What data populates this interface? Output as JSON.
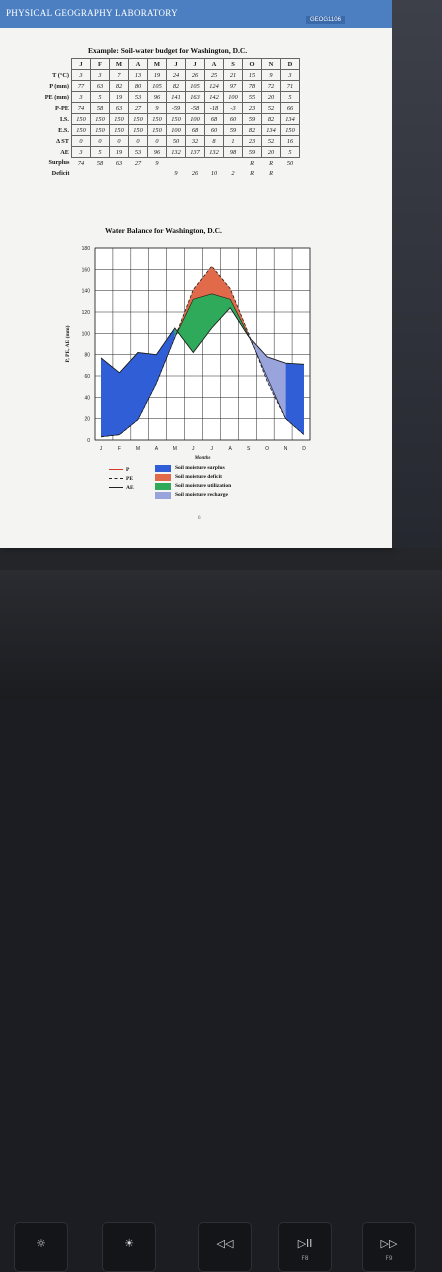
{
  "header": {
    "title": "PHYSICAL GEOGRAPHY LABORATORY",
    "code": "GEOG1106"
  },
  "table": {
    "title": "Example: Soil-water budget for Washington, D.C.",
    "months": [
      "J",
      "F",
      "M",
      "A",
      "M",
      "J",
      "J",
      "A",
      "S",
      "O",
      "N",
      "D"
    ],
    "rows": [
      {
        "label": "T (°C)",
        "values": [
          "3",
          "3",
          "7",
          "13",
          "19",
          "24",
          "26",
          "25",
          "21",
          "15",
          "9",
          "3"
        ]
      },
      {
        "label": "P (mm)",
        "values": [
          "77",
          "63",
          "82",
          "80",
          "105",
          "82",
          "105",
          "124",
          "97",
          "78",
          "72",
          "71"
        ]
      },
      {
        "label": "PE (mm)",
        "values": [
          "3",
          "5",
          "19",
          "53",
          "96",
          "141",
          "163",
          "142",
          "100",
          "55",
          "20",
          "5"
        ]
      },
      {
        "label": "P-PE",
        "values": [
          "74",
          "58",
          "63",
          "27",
          "9",
          "-59",
          "-58",
          "-18",
          "-3",
          "23",
          "52",
          "66"
        ]
      },
      {
        "label": "I.S.",
        "values": [
          "150",
          "150",
          "150",
          "150",
          "150",
          "150",
          "100",
          "68",
          "60",
          "59",
          "82",
          "134"
        ]
      },
      {
        "label": "E.S.",
        "values": [
          "150",
          "150",
          "150",
          "150",
          "150",
          "100",
          "68",
          "60",
          "59",
          "82",
          "134",
          "150"
        ]
      },
      {
        "label": "Δ ST",
        "values": [
          "0",
          "0",
          "0",
          "0",
          "0",
          "50",
          "32",
          "8",
          "1",
          "23",
          "52",
          "16"
        ]
      },
      {
        "label": "AE",
        "values": [
          "3",
          "5",
          "19",
          "53",
          "96",
          "132",
          "137",
          "132",
          "98",
          "59",
          "20",
          "5"
        ]
      },
      {
        "label": "Surplus",
        "values": [
          "74",
          "58",
          "63",
          "27",
          "9",
          "",
          "",
          "",
          "",
          "R",
          "R",
          "50"
        ]
      },
      {
        "label": "Deficit",
        "values": [
          "",
          "",
          "",
          "",
          "",
          "9",
          "26",
          "10",
          "2",
          "R",
          "R",
          ""
        ]
      }
    ]
  },
  "chart_data": {
    "type": "line",
    "title": "Water Balance for Washington, D.C.",
    "xlabel": "Months",
    "ylabel": "P, PE, AE (mm)",
    "categories": [
      "J",
      "F",
      "M",
      "A",
      "M",
      "J",
      "J",
      "A",
      "S",
      "O",
      "N",
      "D"
    ],
    "ylim": [
      0,
      180
    ],
    "yticks": [
      0,
      20,
      40,
      60,
      80,
      100,
      120,
      140,
      160,
      180
    ],
    "grid": true,
    "series": [
      {
        "name": "P",
        "values": [
          77,
          63,
          82,
          80,
          105,
          82,
          105,
          124,
          97,
          78,
          72,
          71
        ]
      },
      {
        "name": "PE",
        "values": [
          3,
          5,
          19,
          53,
          96,
          141,
          163,
          142,
          100,
          55,
          20,
          5
        ]
      },
      {
        "name": "AE",
        "values": [
          3,
          5,
          19,
          53,
          96,
          132,
          137,
          132,
          98,
          59,
          20,
          5
        ]
      }
    ],
    "legend": {
      "lines": [
        {
          "label": "P",
          "style": "solid",
          "color": "#d23b2a"
        },
        {
          "label": "PE",
          "style": "dashed",
          "color": "#222222"
        },
        {
          "label": "AE",
          "style": "solid",
          "color": "#222222"
        }
      ],
      "fills": [
        {
          "label": "Soil moisture surplus",
          "color": "#2f5ed6"
        },
        {
          "label": "Soil moisture deficit",
          "color": "#e06a4a"
        },
        {
          "label": "Soil moisture utilization",
          "color": "#2faa5a"
        },
        {
          "label": "Soil moisture recharge",
          "color": "#9aa4dc"
        }
      ]
    }
  },
  "page_number": "6",
  "keys": [
    {
      "name": "brightness-down-key",
      "glyph": "☼",
      "fn": ""
    },
    {
      "name": "brightness-up-key",
      "glyph": "☀",
      "fn": ""
    },
    {
      "name": "rewind-key",
      "glyph": "◁◁",
      "fn": ""
    },
    {
      "name": "play-pause-key",
      "glyph": "▷ll",
      "fn": "F8"
    },
    {
      "name": "fast-forward-key",
      "glyph": "▷▷",
      "fn": "F9"
    }
  ],
  "colors": {
    "header": "#4b7fc1",
    "surplus": "#2f5ed6",
    "deficit": "#e06a4a",
    "utilization": "#2faa5a",
    "recharge": "#9aa4dc"
  }
}
